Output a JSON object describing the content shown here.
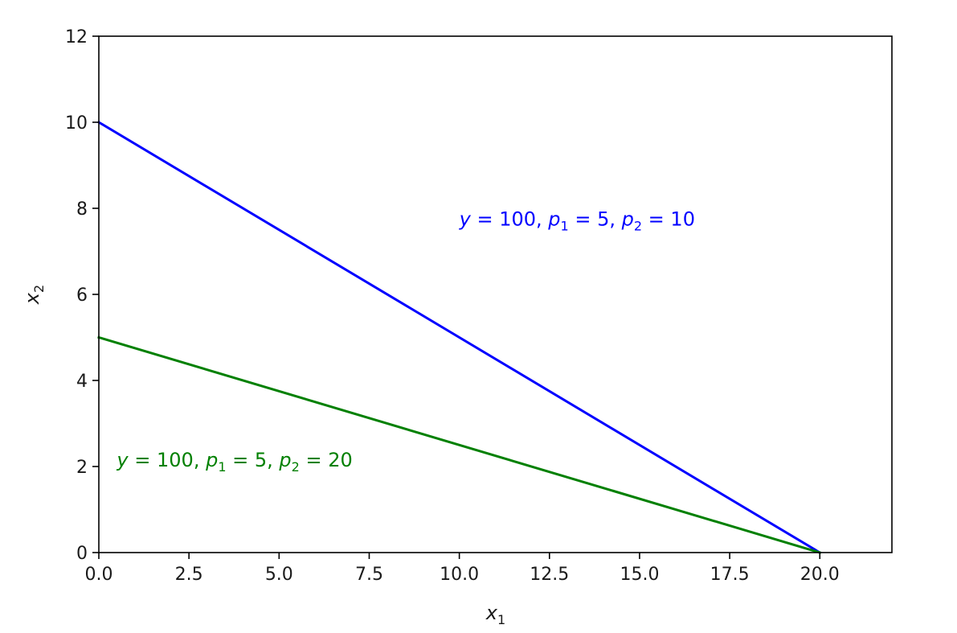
{
  "chart_data": {
    "type": "line",
    "xlabel": "x1",
    "ylabel": "x2",
    "xlim": [
      0,
      22
    ],
    "ylim": [
      0,
      12
    ],
    "x_ticks": [
      0.0,
      2.5,
      5.0,
      7.5,
      10.0,
      12.5,
      15.0,
      17.5,
      20.0
    ],
    "x_tick_labels": [
      "0.0",
      "2.5",
      "5.0",
      "7.5",
      "10.0",
      "12.5",
      "15.0",
      "17.5",
      "20.0"
    ],
    "y_ticks": [
      0,
      2,
      4,
      6,
      8,
      10,
      12
    ],
    "y_tick_labels": [
      "0",
      "2",
      "4",
      "6",
      "8",
      "10",
      "12"
    ],
    "grid": false,
    "series": [
      {
        "color": "#0000ff",
        "x": [
          0,
          20
        ],
        "y": [
          10,
          0
        ]
      },
      {
        "color": "#008000",
        "x": [
          0,
          20
        ],
        "y": [
          5,
          0
        ]
      }
    ],
    "annotations": [
      {
        "text": "y = 100, p1 = 5, p2 = 10",
        "x": 10.0,
        "y": 7.6,
        "color": "#0000ff",
        "y_value": "100",
        "p1_value": "5",
        "p2_value": "10"
      },
      {
        "text": "y = 100, p1 = 5, p2 = 20",
        "x": 0.5,
        "y": 2.0,
        "color": "#008000",
        "y_value": "100",
        "p1_value": "5",
        "p2_value": "20"
      }
    ]
  }
}
